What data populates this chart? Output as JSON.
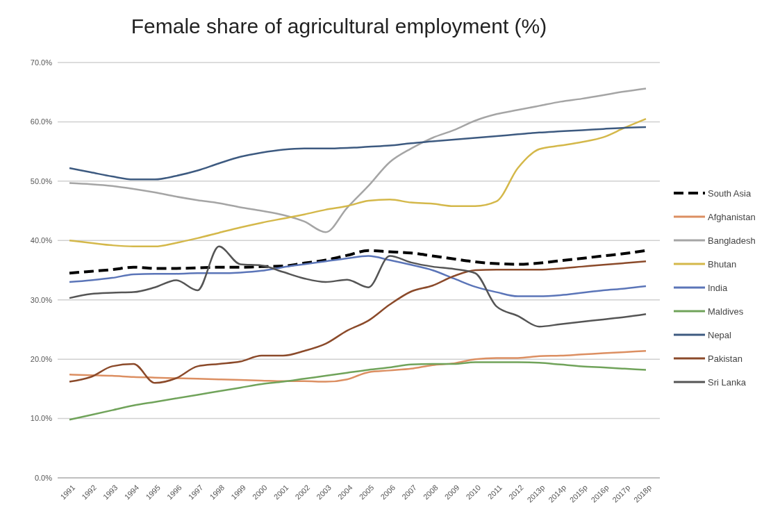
{
  "chart_data": {
    "type": "line",
    "title": "Female share of agricultural employment (%)",
    "categories": [
      "1991",
      "1992",
      "1993",
      "1994",
      "1995",
      "1996",
      "1997",
      "1998",
      "1999",
      "2000",
      "2001",
      "2002",
      "2003",
      "2004",
      "2005",
      "2006",
      "2007",
      "2008",
      "2009",
      "2010",
      "2011",
      "2012",
      "2013p",
      "2014p",
      "2015p",
      "2016p",
      "2017p",
      "2018p"
    ],
    "series": [
      {
        "name": "South Asia",
        "color": "#000000",
        "line_style": "dashed",
        "values": [
          34.5,
          34.8,
          35.1,
          35.5,
          35.3,
          35.3,
          35.4,
          35.5,
          35.5,
          35.6,
          35.7,
          36.2,
          36.7,
          37.5,
          38.3,
          38.1,
          37.9,
          37.4,
          36.9,
          36.4,
          36.1,
          36.0,
          36.2,
          36.6,
          37.0,
          37.4,
          37.8,
          38.3
        ]
      },
      {
        "name": "Afghanistan",
        "color": "#dc8f62",
        "values": [
          17.4,
          17.3,
          17.2,
          17.0,
          16.9,
          16.8,
          16.7,
          16.6,
          16.5,
          16.4,
          16.3,
          16.3,
          16.2,
          16.6,
          17.8,
          18.1,
          18.4,
          19.0,
          19.3,
          20.0,
          20.2,
          20.2,
          20.5,
          20.6,
          20.8,
          21.0,
          21.2,
          21.4
        ]
      },
      {
        "name": "Bangladesh",
        "color": "#a5a5a5",
        "values": [
          49.7,
          49.5,
          49.2,
          48.7,
          48.1,
          47.4,
          46.8,
          46.3,
          45.6,
          45.0,
          44.3,
          43.2,
          41.4,
          45.5,
          49.2,
          53.2,
          55.5,
          57.3,
          58.6,
          60.2,
          61.3,
          62.0,
          62.7,
          63.4,
          63.9,
          64.5,
          65.1,
          65.6
        ]
      },
      {
        "name": "Bhutan",
        "color": "#d4b84a",
        "values": [
          40.0,
          39.6,
          39.2,
          39.0,
          39.0,
          39.6,
          40.4,
          41.3,
          42.2,
          43.0,
          43.7,
          44.4,
          45.2,
          45.8,
          46.7,
          46.9,
          46.4,
          46.2,
          45.8,
          45.8,
          46.6,
          52.2,
          55.4,
          56.0,
          56.6,
          57.4,
          59.0,
          60.5
        ]
      },
      {
        "name": "India",
        "color": "#5b75b8",
        "values": [
          33.0,
          33.3,
          33.7,
          34.3,
          34.4,
          34.4,
          34.5,
          34.5,
          34.6,
          34.9,
          35.5,
          36.0,
          36.5,
          37.0,
          37.4,
          36.7,
          35.9,
          35.0,
          33.6,
          32.2,
          31.3,
          30.6,
          30.6,
          30.8,
          31.2,
          31.6,
          31.9,
          32.3
        ]
      },
      {
        "name": "Maldives",
        "color": "#70a35a",
        "values": [
          9.8,
          10.6,
          11.4,
          12.2,
          12.8,
          13.4,
          14.0,
          14.6,
          15.2,
          15.8,
          16.2,
          16.7,
          17.2,
          17.7,
          18.2,
          18.6,
          19.1,
          19.2,
          19.2,
          19.5,
          19.5,
          19.5,
          19.4,
          19.1,
          18.8,
          18.6,
          18.4,
          18.2
        ]
      },
      {
        "name": "Nepal",
        "color": "#3d5a80",
        "values": [
          52.2,
          51.5,
          50.8,
          50.3,
          50.3,
          50.9,
          51.8,
          53.0,
          54.1,
          54.8,
          55.3,
          55.5,
          55.5,
          55.6,
          55.8,
          56.0,
          56.4,
          56.7,
          57.0,
          57.3,
          57.6,
          57.9,
          58.2,
          58.4,
          58.6,
          58.8,
          59.0,
          59.1
        ]
      },
      {
        "name": "Pakistan",
        "color": "#8b4a2a",
        "values": [
          16.2,
          17.0,
          18.8,
          19.2,
          16.0,
          16.8,
          18.8,
          19.2,
          19.6,
          20.6,
          20.6,
          21.4,
          22.6,
          24.8,
          26.5,
          29.2,
          31.4,
          32.4,
          34.0,
          35.0,
          35.1,
          35.1,
          35.1,
          35.3,
          35.6,
          35.9,
          36.2,
          36.5
        ]
      },
      {
        "name": "Sri Lanka",
        "color": "#555555",
        "values": [
          30.3,
          31.0,
          31.2,
          31.3,
          32.1,
          33.3,
          31.6,
          39.0,
          36.0,
          35.8,
          34.7,
          33.6,
          33.0,
          33.4,
          32.1,
          37.4,
          36.3,
          35.6,
          35.2,
          34.5,
          28.9,
          27.3,
          25.5,
          25.9,
          26.3,
          26.7,
          27.1,
          27.6
        ]
      }
    ],
    "ylim": [
      0,
      70
    ],
    "yticks": [
      {
        "value": 0,
        "label": "0.0%"
      },
      {
        "value": 10,
        "label": "10.0%"
      },
      {
        "value": 20,
        "label": "20.0%"
      },
      {
        "value": 30,
        "label": "30.0%"
      },
      {
        "value": 40,
        "label": "40.0%"
      },
      {
        "value": 50,
        "label": "50.0%"
      },
      {
        "value": 60,
        "label": "60.0%"
      },
      {
        "value": 70,
        "label": "70.0%"
      }
    ],
    "grid": "y",
    "legend": "right",
    "line_style": "solid",
    "marker": "none"
  }
}
